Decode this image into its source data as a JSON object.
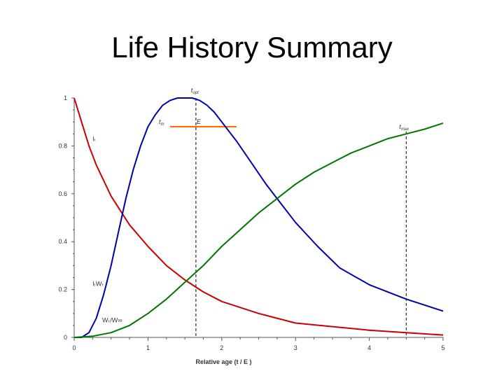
{
  "slide": {
    "title": "Life History Summary"
  },
  "chart_data": {
    "type": "line",
    "title": "",
    "xlabel": "Relative age (t / E )",
    "ylabel": "",
    "xlim": [
      0,
      5
    ],
    "ylim": [
      0,
      1
    ],
    "x_ticks": [
      0,
      1,
      2,
      3,
      4,
      5
    ],
    "y_ticks": [
      0,
      0.2,
      0.4,
      0.6,
      0.8,
      1
    ],
    "x_tick_labels": [
      "0",
      "1",
      "2",
      "3",
      "4",
      "5"
    ],
    "y_tick_labels": [
      "0",
      "0.2",
      "0.4",
      "0.6",
      "0.8",
      "1"
    ],
    "grid": false,
    "legend": "none",
    "series": [
      {
        "name": "lₜ",
        "color": "#cc0000",
        "x": [
          0,
          0.1,
          0.2,
          0.3,
          0.5,
          0.75,
          1.0,
          1.25,
          1.5,
          1.75,
          2.0,
          2.5,
          3.0,
          3.5,
          4.0,
          4.5,
          5.0
        ],
        "y": [
          1.0,
          0.9,
          0.8,
          0.72,
          0.59,
          0.47,
          0.38,
          0.3,
          0.24,
          0.19,
          0.15,
          0.1,
          0.06,
          0.045,
          0.03,
          0.02,
          0.01
        ]
      },
      {
        "name": "lₜWₜ",
        "color": "#0000aa",
        "x": [
          0,
          0.05,
          0.1,
          0.2,
          0.3,
          0.4,
          0.5,
          0.6,
          0.7,
          0.8,
          0.9,
          1.0,
          1.1,
          1.2,
          1.3,
          1.4,
          1.5,
          1.6,
          1.7,
          1.8,
          1.9,
          2.0,
          2.2,
          2.4,
          2.6,
          2.8,
          3.0,
          3.3,
          3.6,
          4.0,
          4.5,
          5.0
        ],
        "y": [
          0,
          0,
          0,
          0.02,
          0.08,
          0.18,
          0.3,
          0.44,
          0.58,
          0.7,
          0.8,
          0.88,
          0.93,
          0.97,
          0.99,
          1.0,
          1.0,
          1.0,
          0.99,
          0.97,
          0.94,
          0.9,
          0.82,
          0.73,
          0.64,
          0.56,
          0.48,
          0.38,
          0.29,
          0.22,
          0.16,
          0.11
        ]
      },
      {
        "name": "Wₜ/W∞",
        "color": "#007700",
        "x": [
          0,
          0.25,
          0.5,
          0.75,
          1.0,
          1.25,
          1.5,
          1.75,
          2.0,
          2.25,
          2.5,
          2.75,
          3.0,
          3.25,
          3.5,
          3.75,
          4.0,
          4.25,
          4.5,
          4.75,
          5.0
        ],
        "y": [
          0,
          0.005,
          0.02,
          0.05,
          0.1,
          0.16,
          0.23,
          0.3,
          0.38,
          0.45,
          0.52,
          0.58,
          0.64,
          0.69,
          0.73,
          0.77,
          0.8,
          0.83,
          0.85,
          0.87,
          0.895
        ]
      }
    ],
    "annotations": [
      {
        "label": "t",
        "sub": "opt",
        "x": 1.65,
        "y": 1.0,
        "type": "vline",
        "line_color": "#000000"
      },
      {
        "label": "t",
        "sub": "m",
        "x": 1.3,
        "y": 0.88,
        "type": "point"
      },
      {
        "label": "E",
        "sub": "",
        "x1": 1.3,
        "x2": 2.2,
        "y": 0.88,
        "type": "hline",
        "line_color": "#ff6600"
      },
      {
        "label": "t",
        "sub": "max",
        "x": 4.5,
        "y": 0.86,
        "type": "vline",
        "line_color": "#000000"
      }
    ],
    "series_labels": [
      {
        "text": "lₜ",
        "x": 0.25,
        "y": 0.82
      },
      {
        "text": "lₜWₜ",
        "x": 0.25,
        "y": 0.215
      },
      {
        "text": "Wₜ/W∞",
        "x": 0.38,
        "y": 0.063
      }
    ]
  }
}
